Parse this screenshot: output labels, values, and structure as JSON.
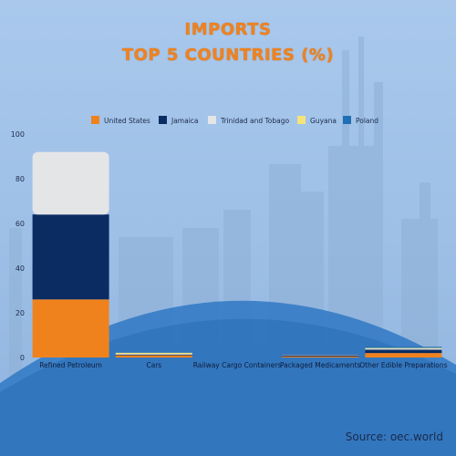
{
  "title": {
    "line1": "IMPORTS",
    "line2": "TOP 5 COUNTRIES (%)"
  },
  "source": "Source: oec.world",
  "colors": {
    "United States": "#f0821e",
    "Jamaica": "#0b2c63",
    "Trinidad and Tobago": "#e4e5e7",
    "Guyana": "#f4e37a",
    "Poland": "#1f6fb5"
  },
  "chart_data": {
    "type": "bar",
    "stacked": true,
    "categories": [
      "Refined Petroleum",
      "Cars",
      "Railway Cargo Containers",
      "Packaged Medicaments",
      "Other Edible Preparations"
    ],
    "series": [
      {
        "name": "United States",
        "values": [
          26,
          1,
          0,
          0.5,
          2
        ]
      },
      {
        "name": "Jamaica",
        "values": [
          38,
          0.3,
          0,
          0.5,
          1.5
        ]
      },
      {
        "name": "Trinidad and Tobago",
        "values": [
          28,
          0.3,
          0,
          0.2,
          0.5
        ]
      },
      {
        "name": "Guyana",
        "values": [
          0,
          0.5,
          0,
          0,
          0.3
        ]
      },
      {
        "name": "Poland",
        "values": [
          0,
          0,
          0,
          0,
          0.5
        ]
      }
    ],
    "ylim": [
      0,
      100
    ],
    "yticks": [
      0,
      20,
      40,
      60,
      80,
      100
    ],
    "legend_position": "top"
  }
}
